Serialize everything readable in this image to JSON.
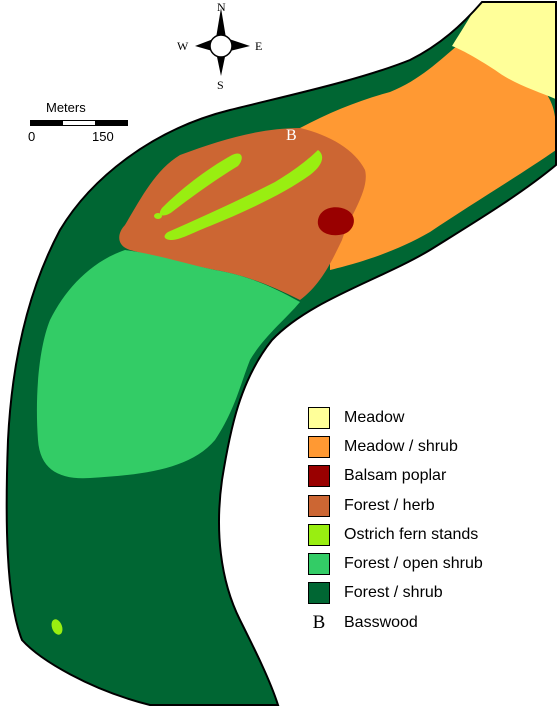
{
  "compass": {
    "north": "N",
    "south": "S",
    "east": "E",
    "west": "W"
  },
  "scale": {
    "title": "Meters",
    "min_label": "0",
    "max_label": "150"
  },
  "map_labels": {
    "basswood_marker": "B"
  },
  "colors": {
    "meadow": "#ffff99",
    "meadow_shrub": "#ff9933",
    "balsam_poplar": "#990000",
    "forest_herb": "#cc6633",
    "ostrich_fern": "#99ee11",
    "forest_open_shrub": "#33cc66",
    "forest_shrub": "#006633"
  },
  "legend": [
    {
      "label": "Meadow",
      "color": "#ffff99"
    },
    {
      "label": "Meadow / shrub",
      "color": "#ff9933"
    },
    {
      "label": "Balsam poplar",
      "color": "#990000"
    },
    {
      "label": "Forest / herb",
      "color": "#cc6633"
    },
    {
      "label": "Ostrich fern stands",
      "color": "#99ee11"
    },
    {
      "label": "Forest / open shrub",
      "color": "#33cc66"
    },
    {
      "label": "Forest / shrub",
      "color": "#006633"
    },
    {
      "label": "Basswood",
      "symbol": "B"
    }
  ]
}
